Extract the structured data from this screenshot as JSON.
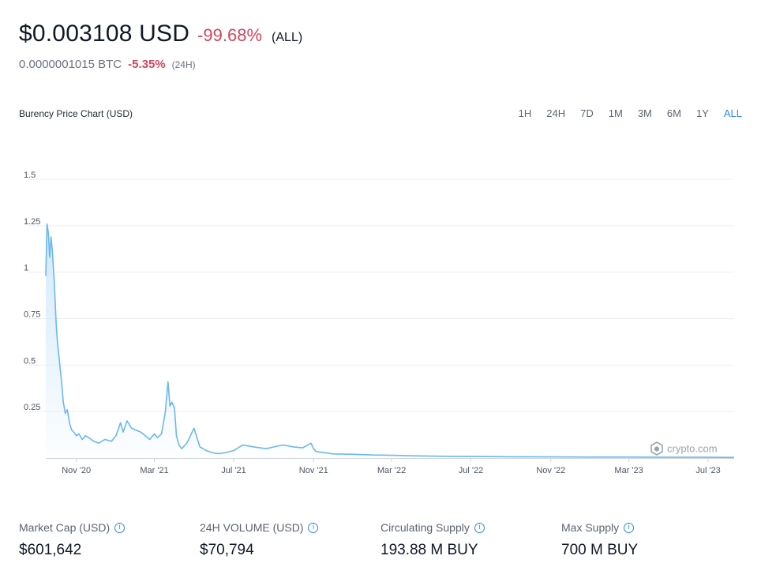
{
  "header": {
    "price": "$0.003108 USD",
    "change": "-99.68%",
    "range": "(ALL)",
    "btc_price": "0.0000001015 BTC",
    "btc_change": "-5.35%",
    "btc_range": "(24H)"
  },
  "chart": {
    "title": "Burency Price Chart (USD)",
    "timeframes": [
      "1H",
      "24H",
      "7D",
      "1M",
      "3M",
      "6M",
      "1Y",
      "ALL"
    ],
    "active_timeframe": "ALL",
    "watermark": "crypto.com"
  },
  "stats": [
    {
      "label": "Market Cap (USD)",
      "value": "$601,642"
    },
    {
      "label": "24H VOLUME (USD)",
      "value": "$70,794"
    },
    {
      "label": "Circulating Supply",
      "value": "193.88 M BUY"
    },
    {
      "label": "Max Supply",
      "value": "700 M BUY"
    }
  ],
  "colors": {
    "line": "#6ab8ef",
    "negative": "#d1465c",
    "accent": "#2a8bf2"
  },
  "chart_data": {
    "type": "area",
    "title": "Burency Price Chart (USD)",
    "xlabel": "",
    "ylabel": "",
    "ylim": [
      0,
      1.5
    ],
    "yticks": [
      "0.25",
      "0.5",
      "0.75",
      "1",
      "1.25",
      "1.5"
    ],
    "xticks": [
      "Nov '20",
      "Mar '21",
      "Jul '21",
      "Nov '21",
      "Mar '22",
      "Jul '22",
      "Nov '22",
      "Mar '23",
      "Jul '23"
    ],
    "xtick_dates": [
      "2020-11-01",
      "2021-03-01",
      "2021-07-01",
      "2021-11-01",
      "2022-03-01",
      "2022-07-01",
      "2022-11-01",
      "2023-03-01",
      "2023-07-01"
    ],
    "grid": true,
    "x_dates": [
      "2020-09-15",
      "2020-09-17",
      "2020-09-19",
      "2020-09-21",
      "2020-09-23",
      "2020-09-25",
      "2020-09-28",
      "2020-10-01",
      "2020-10-03",
      "2020-10-06",
      "2020-10-09",
      "2020-10-12",
      "2020-10-15",
      "2020-10-18",
      "2020-10-22",
      "2020-10-25",
      "2020-10-28",
      "2020-11-01",
      "2020-11-05",
      "2020-11-10",
      "2020-11-15",
      "2020-11-20",
      "2020-11-28",
      "2020-12-05",
      "2020-12-15",
      "2020-12-25",
      "2021-01-01",
      "2021-01-08",
      "2021-01-12",
      "2021-01-18",
      "2021-01-25",
      "2021-02-01",
      "2021-02-08",
      "2021-02-15",
      "2021-02-22",
      "2021-03-01",
      "2021-03-06",
      "2021-03-12",
      "2021-03-18",
      "2021-03-22",
      "2021-03-25",
      "2021-03-28",
      "2021-04-01",
      "2021-04-04",
      "2021-04-08",
      "2021-04-12",
      "2021-04-20",
      "2021-05-01",
      "2021-05-10",
      "2021-05-20",
      "2021-05-24",
      "2021-05-28",
      "2021-06-03",
      "2021-06-10",
      "2021-06-20",
      "2021-07-01",
      "2021-07-15",
      "2021-08-01",
      "2021-08-20",
      "2021-09-01",
      "2021-09-15",
      "2021-10-01",
      "2021-10-15",
      "2021-10-28",
      "2021-11-01",
      "2021-11-05",
      "2021-11-15",
      "2021-12-01",
      "2022-01-01",
      "2022-02-01",
      "2022-03-01",
      "2022-04-01",
      "2022-05-01",
      "2022-06-01",
      "2022-07-01",
      "2022-09-01",
      "2022-11-01",
      "2023-01-01",
      "2023-03-01",
      "2023-05-01",
      "2023-07-01",
      "2023-08-10"
    ],
    "values": [
      0.98,
      1.26,
      1.21,
      1.08,
      1.19,
      1.12,
      0.95,
      0.72,
      0.62,
      0.52,
      0.42,
      0.3,
      0.24,
      0.26,
      0.18,
      0.15,
      0.14,
      0.12,
      0.13,
      0.1,
      0.12,
      0.11,
      0.09,
      0.08,
      0.1,
      0.09,
      0.12,
      0.19,
      0.14,
      0.2,
      0.16,
      0.15,
      0.14,
      0.12,
      0.1,
      0.13,
      0.11,
      0.13,
      0.25,
      0.41,
      0.28,
      0.3,
      0.27,
      0.12,
      0.07,
      0.05,
      0.08,
      0.16,
      0.06,
      0.04,
      0.035,
      0.03,
      0.025,
      0.024,
      0.03,
      0.04,
      0.07,
      0.06,
      0.05,
      0.06,
      0.07,
      0.06,
      0.055,
      0.08,
      0.05,
      0.035,
      0.03,
      0.022,
      0.02,
      0.016,
      0.015,
      0.012,
      0.01,
      0.009,
      0.008,
      0.007,
      0.006,
      0.005,
      0.005,
      0.004,
      0.004,
      0.003
    ]
  }
}
